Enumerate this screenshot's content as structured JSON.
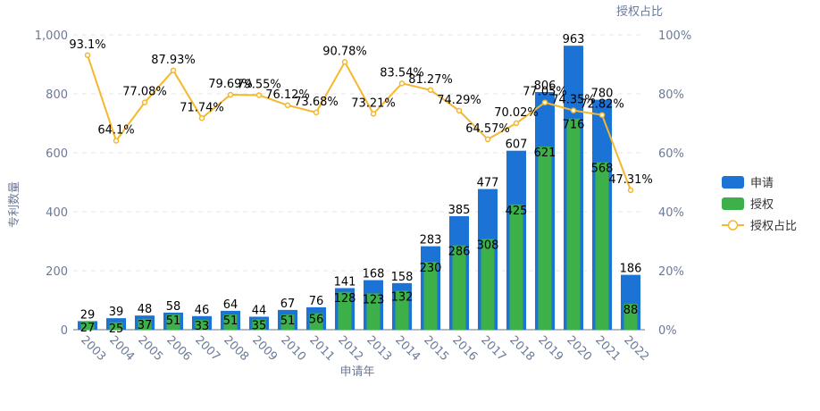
{
  "chart_data": {
    "type": "bar",
    "xlabel": "申请年",
    "ylabel": "专利数量",
    "y2label": "授权占比",
    "ylim": [
      0,
      1000
    ],
    "y2lim": [
      0,
      100
    ],
    "yticks": [
      "0",
      "200",
      "400",
      "600",
      "800",
      "1,000"
    ],
    "y2ticks": [
      "0%",
      "20%",
      "40%",
      "60%",
      "80%",
      "100%"
    ],
    "grid": true,
    "legend_position": "right",
    "categories": [
      "2003",
      "2004",
      "2005",
      "2006",
      "2007",
      "2008",
      "2009",
      "2010",
      "2011",
      "2012",
      "2013",
      "2014",
      "2015",
      "2016",
      "2017",
      "2018",
      "2019",
      "2020",
      "2021",
      "2022"
    ],
    "series": [
      {
        "name": "申请",
        "type": "bar",
        "color": "#1b73d6",
        "values": [
          29,
          39,
          48,
          58,
          46,
          64,
          44,
          67,
          76,
          141,
          168,
          158,
          283,
          385,
          477,
          607,
          806,
          963,
          780,
          186
        ]
      },
      {
        "name": "授权",
        "type": "bar",
        "color": "#3db049",
        "values": [
          27,
          25,
          37,
          51,
          33,
          51,
          35,
          51,
          56,
          128,
          123,
          132,
          230,
          286,
          308,
          425,
          621,
          716,
          568,
          88
        ]
      },
      {
        "name": "授权占比",
        "type": "line",
        "axis": "right",
        "color": "#f5b72b",
        "values": [
          93.1,
          64.1,
          77.08,
          87.93,
          71.74,
          79.69,
          79.55,
          76.12,
          73.68,
          90.78,
          73.21,
          83.54,
          81.27,
          74.29,
          64.57,
          70.02,
          77.05,
          74.35,
          72.82,
          47.31
        ],
        "labels": [
          "93.1%",
          "64.1%",
          "77.08%",
          "87.93%",
          "71.74%",
          "79.69%",
          "79.55%",
          "76.12%",
          "73.68%",
          "90.78%",
          "73.21%",
          "83.54%",
          "81.27%",
          "74.29%",
          "64.57%",
          "70.02%",
          "77.05%",
          "74.35%",
          "72.82%",
          "47.31%"
        ]
      }
    ]
  }
}
